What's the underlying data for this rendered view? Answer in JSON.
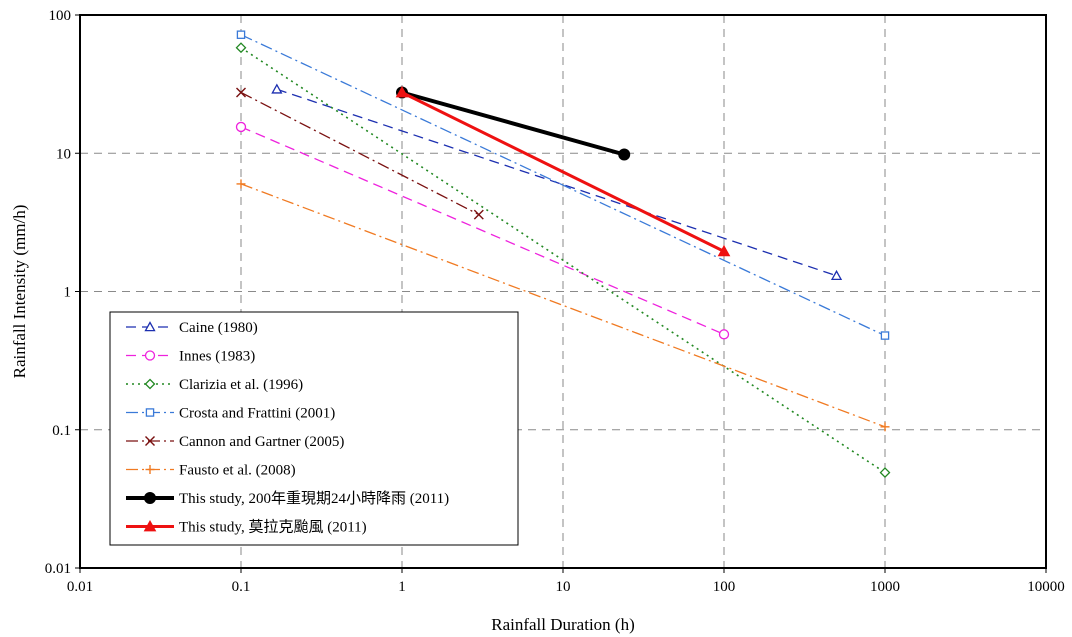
{
  "chart_data": {
    "type": "line",
    "title": "",
    "xlabel": "Rainfall Duration (h)",
    "ylabel": "Rainfall Intensity (mm/h)",
    "x_scale": "log",
    "y_scale": "log",
    "xlim": [
      0.01,
      10000
    ],
    "ylim": [
      0.01,
      100
    ],
    "x_ticks": [
      0.01,
      0.1,
      1,
      10,
      100,
      1000,
      10000
    ],
    "x_tick_labels": [
      "0.01",
      "0.1",
      "1",
      "10",
      "100",
      "1000",
      "10000"
    ],
    "y_ticks": [
      0.01,
      0.1,
      1,
      10,
      100
    ],
    "y_tick_labels": [
      "0.01",
      "0.1",
      "1",
      "10",
      "100"
    ],
    "grid": true,
    "legend_position": "bottom-left",
    "series": [
      {
        "name": "Caine (1980)",
        "color": "#1c2fb0",
        "dash": "10,6",
        "width": 1.3,
        "marker": "triangle-open",
        "x": [
          0.167,
          500
        ],
        "y": [
          29,
          1.3
        ]
      },
      {
        "name": "Innes (1983)",
        "color": "#ee22dd",
        "dash": "10,6",
        "width": 1.3,
        "marker": "circle-open",
        "x": [
          0.1,
          100
        ],
        "y": [
          15.5,
          0.49
        ]
      },
      {
        "name": "Clarizia et al. (1996)",
        "color": "#228822",
        "dash": "2,4",
        "width": 1.6,
        "marker": "diamond-open",
        "x": [
          0.1,
          1000
        ],
        "y": [
          58,
          0.049
        ]
      },
      {
        "name": "Crosta and Frattini (2001)",
        "color": "#3a7ad8",
        "dash": "12,4,2,4",
        "width": 1.3,
        "marker": "square-open",
        "x": [
          0.1,
          1000
        ],
        "y": [
          72,
          0.48
        ]
      },
      {
        "name": "Cannon and Gartner (2005)",
        "color": "#7a1010",
        "dash": "12,4,2,4",
        "width": 1.3,
        "marker": "x",
        "x": [
          0.1,
          3
        ],
        "y": [
          27.5,
          3.6
        ]
      },
      {
        "name": "Fausto et al. (2008)",
        "color": "#f07a22",
        "dash": "12,4,2,4",
        "width": 1.3,
        "marker": "plus",
        "x": [
          0.1,
          1000
        ],
        "y": [
          6,
          0.105
        ]
      },
      {
        "name": "This study, 200年重現期24小時降雨 (2011)",
        "color": "#000000",
        "dash": "",
        "width": 4,
        "marker": "circle-filled",
        "x": [
          1,
          24
        ],
        "y": [
          27.5,
          9.8
        ]
      },
      {
        "name": "This study, 莫拉克颱風 (2011)",
        "color": "#ee1111",
        "dash": "",
        "width": 3,
        "marker": "triangle-filled",
        "x": [
          1,
          100
        ],
        "y": [
          27.5,
          1.95
        ]
      }
    ]
  }
}
